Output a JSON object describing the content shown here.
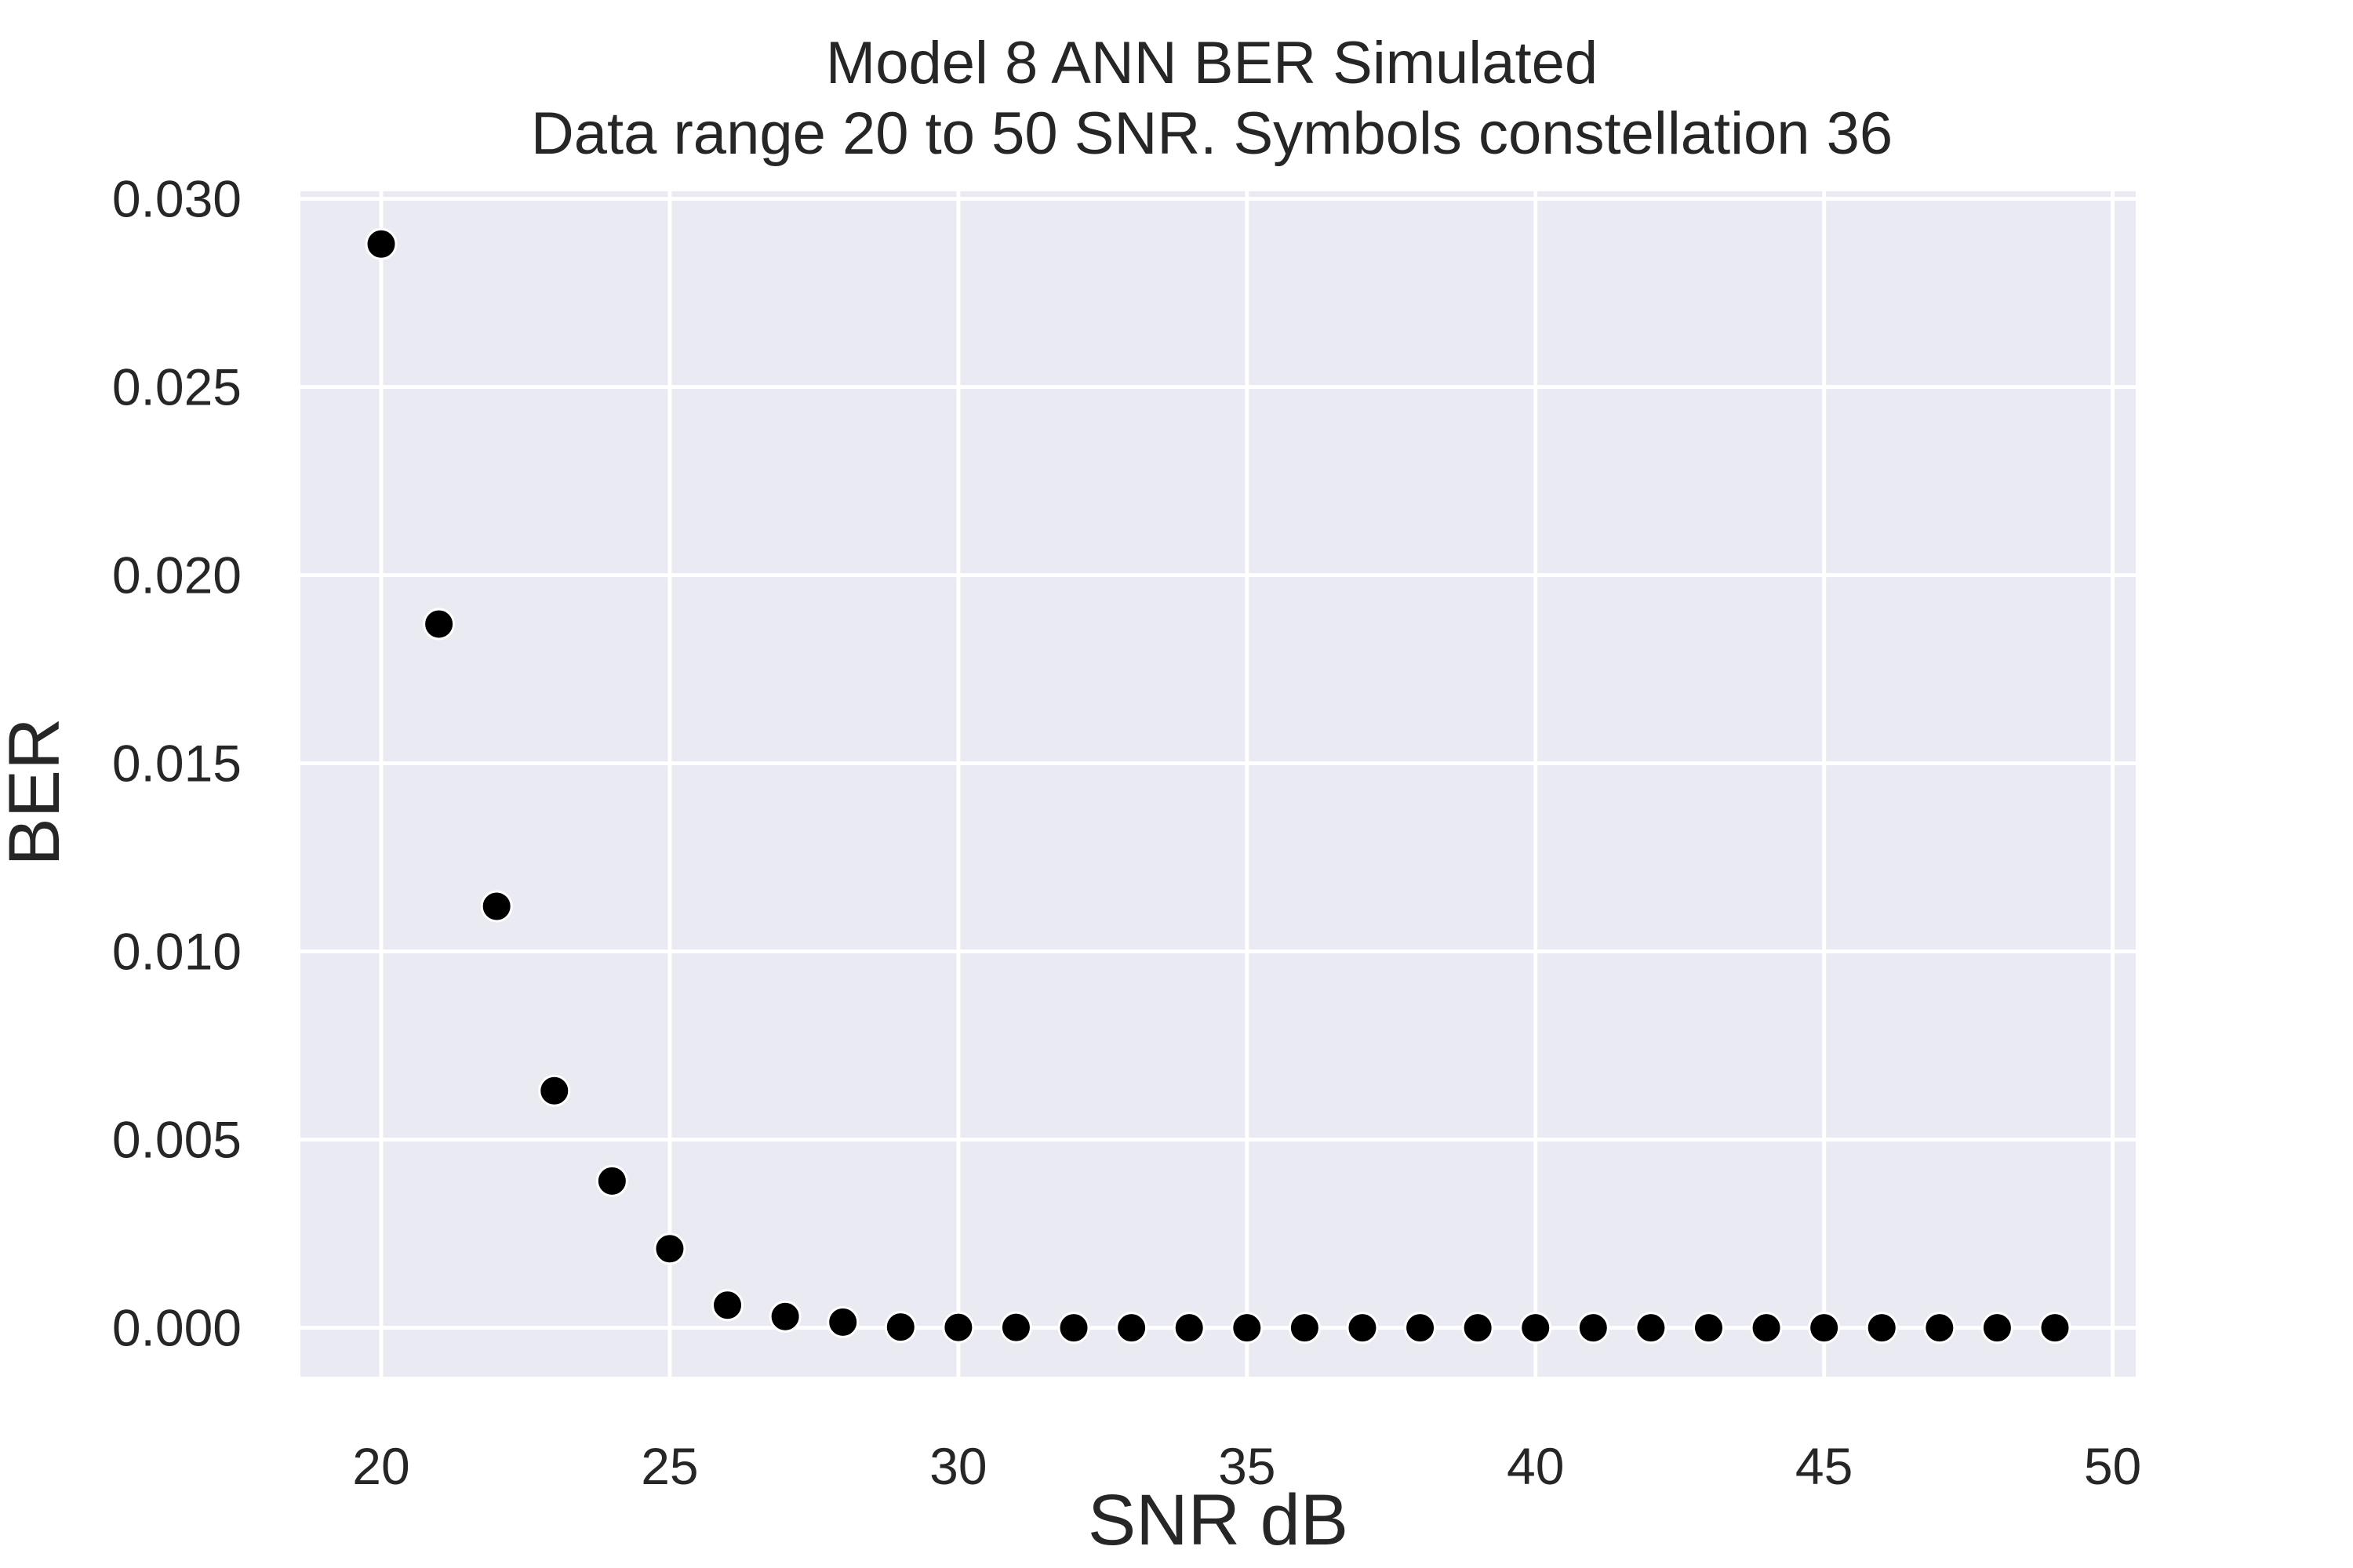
{
  "chart_data": {
    "type": "scatter",
    "title": "Model 8 ANN BER Simulated",
    "subtitle": "Data range 20 to 50 SNR. Symbols constellation 36",
    "xlabel": "SNR dB",
    "ylabel": "BER",
    "xlim": [
      18.6,
      50.4
    ],
    "ylim": [
      -0.0013,
      0.0302
    ],
    "xticks": [
      20,
      25,
      30,
      35,
      40,
      45,
      50
    ],
    "yticks": [
      0.0,
      0.005,
      0.01,
      0.015,
      0.02,
      0.025,
      0.03
    ],
    "ytick_labels": [
      "0.000",
      "0.005",
      "0.010",
      "0.015",
      "0.020",
      "0.025",
      "0.030"
    ],
    "grid": true,
    "background_color": "#eaeaf2",
    "point_color": "#000000",
    "x": [
      20,
      21,
      22,
      23,
      24,
      25,
      26,
      27,
      28,
      29,
      30,
      31,
      32,
      33,
      34,
      35,
      36,
      37,
      38,
      39,
      40,
      41,
      42,
      43,
      44,
      45,
      46,
      47,
      48,
      49
    ],
    "y": [
      0.0288,
      0.0187,
      0.0112,
      0.0063,
      0.0039,
      0.0021,
      0.0006,
      0.0003,
      0.00015,
      2e-05,
      1e-05,
      1e-05,
      0.0,
      0.0,
      0.0,
      0.0,
      0.0,
      0.0,
      0.0,
      0.0,
      0.0,
      0.0,
      0.0,
      0.0,
      0.0,
      0.0,
      0.0,
      0.0,
      0.0,
      0.0
    ]
  }
}
